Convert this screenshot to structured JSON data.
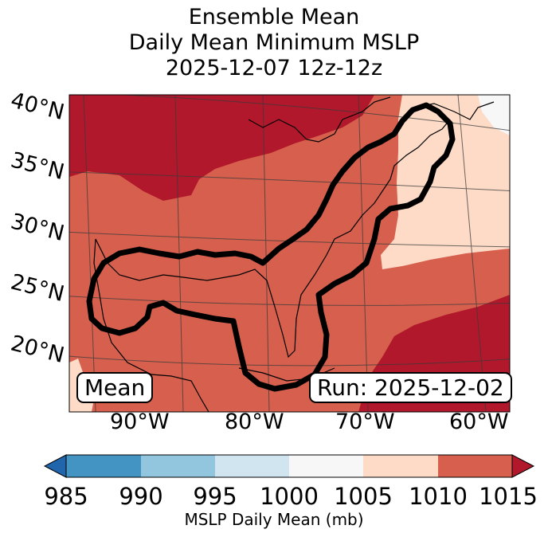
{
  "title": {
    "line1": "Ensemble Mean",
    "line2": "Daily Mean Minimum MSLP",
    "line3": "2025-12-07 12z-12z"
  },
  "map": {
    "lat_labels": [
      "40°N",
      "35°N",
      "30°N",
      "25°N",
      "20°N"
    ],
    "lon_labels": [
      "90°W",
      "80°W",
      "70°W",
      "60°W"
    ],
    "fill_colors": {
      "c1015": "#b2182b",
      "c1010": "#d6604d",
      "c1005": "#fddbc7",
      "c1000": "#f7f7f7"
    },
    "contour_color": "#000000"
  },
  "annotations": {
    "mean_label": "Mean",
    "run_label": "Run: 2025-12-02"
  },
  "colorbar": {
    "ticks": [
      "985",
      "990",
      "995",
      "1000",
      "1005",
      "1010",
      "1015"
    ],
    "colors": [
      "#2166ac",
      "#4393c3",
      "#92c5de",
      "#d1e5f0",
      "#f7f7f7",
      "#fddbc7",
      "#d6604d",
      "#b2182b"
    ],
    "label": "MSLP Daily Mean (mb)"
  }
}
